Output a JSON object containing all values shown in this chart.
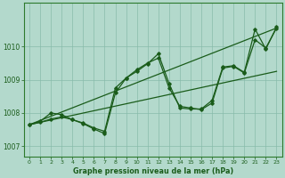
{
  "title": "Graphe pression niveau de la mer (hPa)",
  "bg_color": "#b3d9cc",
  "grid_color": "#88bbaa",
  "line_color": "#1a5c1a",
  "spine_color": "#2d7a2d",
  "xlim": [
    -0.5,
    23.5
  ],
  "ylim": [
    1006.7,
    1011.3
  ],
  "yticks": [
    1007,
    1008,
    1009,
    1010
  ],
  "xticks": [
    0,
    1,
    2,
    3,
    4,
    5,
    6,
    7,
    8,
    9,
    10,
    11,
    12,
    13,
    14,
    15,
    16,
    17,
    18,
    19,
    20,
    21,
    22,
    23
  ],
  "series1_x": [
    0,
    1,
    2,
    3,
    4,
    5,
    6,
    7,
    8,
    9,
    10,
    11,
    12,
    13,
    14,
    15,
    16,
    17,
    18,
    19,
    20,
    21,
    22,
    23
  ],
  "series1_y": [
    1007.65,
    1007.75,
    1008.0,
    1007.95,
    1007.8,
    1007.7,
    1007.55,
    1007.45,
    1008.75,
    1009.05,
    1009.3,
    1009.5,
    1009.65,
    1008.75,
    1008.2,
    1008.15,
    1008.1,
    1008.3,
    1009.35,
    1009.4,
    1009.2,
    1010.2,
    1009.95,
    1010.55
  ],
  "series2_x": [
    0,
    1,
    2,
    3,
    4,
    5,
    6,
    7,
    8,
    9,
    10,
    11,
    12,
    13,
    14,
    15,
    16,
    17,
    18,
    19,
    20,
    21,
    22,
    23
  ],
  "series2_y": [
    1007.65,
    1007.72,
    1007.82,
    1007.88,
    1007.8,
    1007.68,
    1007.52,
    1007.38,
    1008.6,
    1009.05,
    1009.25,
    1009.48,
    1009.78,
    1008.88,
    1008.15,
    1008.12,
    1008.12,
    1008.38,
    1009.38,
    1009.42,
    1009.22,
    1010.52,
    1009.92,
    1010.58
  ],
  "trend1_x": [
    0,
    23
  ],
  "trend1_y": [
    1007.65,
    1010.55
  ],
  "trend2_x": [
    0,
    23
  ],
  "trend2_y": [
    1007.65,
    1009.25
  ]
}
